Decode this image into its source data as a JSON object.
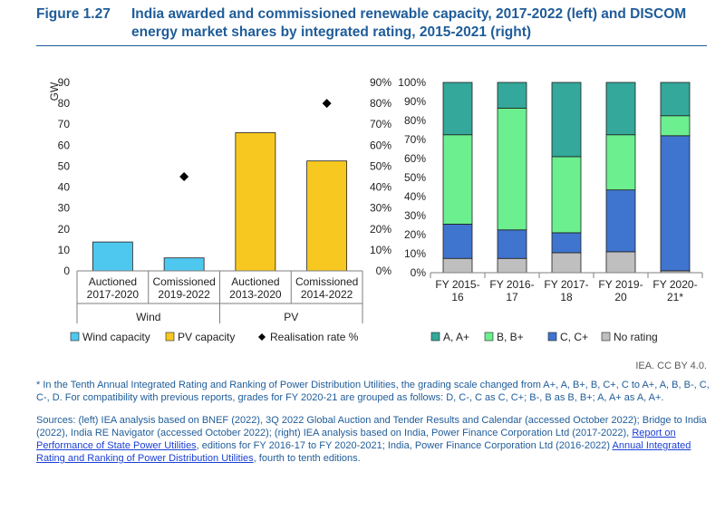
{
  "header": {
    "figure_label": "Figure 1.27",
    "title": "India awarded and commissioned renewable capacity, 2017-2022 (left) and DISCOM energy market shares by integrated rating, 2015-2021 (right)"
  },
  "chart_data": [
    {
      "type": "bar",
      "ylabel": "GW",
      "ylim": [
        0,
        90
      ],
      "yticks": [
        "0",
        "10",
        "20",
        "30",
        "40",
        "50",
        "60",
        "70",
        "80",
        "90"
      ],
      "y2lim": [
        0,
        90
      ],
      "y2ticks": [
        "0%",
        "10%",
        "20%",
        "30%",
        "40%",
        "50%",
        "60%",
        "70%",
        "80%",
        "90%"
      ],
      "categories": [
        "Auctioned 2017-2020",
        "Comissioned 2019-2022",
        "Auctioned 2013-2020",
        "Comissioned 2014-2022"
      ],
      "category_lines": [
        [
          "Auctioned",
          "2017-2020"
        ],
        [
          "Comissioned",
          "2019-2022"
        ],
        [
          "Auctioned",
          "2013-2020"
        ],
        [
          "Comissioned",
          "2014-2022"
        ]
      ],
      "groups": [
        "Wind",
        "PV"
      ],
      "series": [
        {
          "name": "Wind capacity",
          "color": "#4fc8f0",
          "values": [
            13.8,
            6.2,
            null,
            null
          ]
        },
        {
          "name": "PV capacity",
          "color": "#f7c81f",
          "values": [
            null,
            null,
            66,
            52.5
          ]
        },
        {
          "name": "Realisation rate %",
          "color": "#000000",
          "marker": "diamond",
          "axis": "secondary",
          "values": [
            null,
            45,
            null,
            80
          ]
        }
      ],
      "legend_position": "bottom"
    },
    {
      "type": "bar",
      "stacked": true,
      "ylim": [
        0,
        100
      ],
      "yticks": [
        "0%",
        "10%",
        "20%",
        "30%",
        "40%",
        "50%",
        "60%",
        "70%",
        "80%",
        "90%",
        "100%"
      ],
      "categories": [
        "FY 2015-16",
        "FY 2016-17",
        "FY 2017-18",
        "FY 2019-20",
        "FY 2020-21*"
      ],
      "category_lines": [
        [
          "FY 2015-",
          "16"
        ],
        [
          "FY 2016-",
          "17"
        ],
        [
          "FY 2017-",
          "18"
        ],
        [
          "FY 2019-",
          "20"
        ],
        [
          "FY 2020-",
          "21*"
        ]
      ],
      "series": [
        {
          "name": "No rating",
          "color": "#bfbfbf",
          "values": [
            7.5,
            7.5,
            10.5,
            11,
            1
          ]
        },
        {
          "name": "C, C+",
          "color": "#3f74cf",
          "values": [
            18,
            15,
            10.5,
            32.5,
            71
          ]
        },
        {
          "name": "B, B+",
          "color": "#6bef8f",
          "values": [
            47,
            64,
            40,
            29,
            10.5
          ]
        },
        {
          "name": "A, A+",
          "color": "#34a89a",
          "values": [
            27.5,
            13.5,
            39,
            27.5,
            17.5
          ]
        }
      ],
      "legend_order": [
        "A, A+",
        "B, B+",
        "C, C+",
        "No rating"
      ],
      "legend_position": "bottom"
    }
  ],
  "footer": {
    "credit": "IEA. CC BY 4.0.",
    "note": "* In the Tenth Annual Integrated Rating and Ranking of Power Distribution Utilities, the grading scale changed from A+, A, B+, B, C+, C to A+, A, B, B-, C, C-, D. For compatibility with previous reports, grades for FY 2020-21 are grouped as follows: D, C-, C as C, C+; B-, B as B, B+; A, A+ as A, A+.",
    "sources_prefix": "Sources: (left) IEA analysis based on BNEF (2022), 3Q 2022 Global Auction and Tender Results and Calendar (accessed October 2022); Bridge to India (2022), India RE Navigator (accessed October 2022); (right) IEA analysis based on India, Power Finance Corporation Ltd (2017-2022), ",
    "link1": "Report on Performance of State Power Utilities",
    "sources_mid": ", editions for FY 2016-17 to FY 2020-2021; India, Power Finance Corporation Ltd (2016-2022) ",
    "link2": "Annual Integrated Rating and Ranking of Power Distribution Utilities",
    "sources_suffix": ", fourth to tenth editions."
  }
}
